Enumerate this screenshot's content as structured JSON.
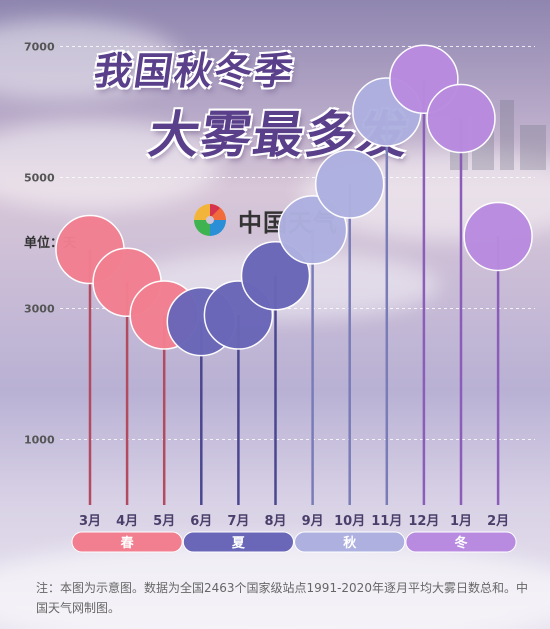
{
  "title": {
    "line1": "我国秋冬季",
    "line2": "大雾最多发"
  },
  "brand": {
    "name": "中国天气"
  },
  "unit_label": "单位：天",
  "chart_data": {
    "type": "bar",
    "categories": [
      "3月",
      "4月",
      "5月",
      "6月",
      "7月",
      "8月",
      "9月",
      "10月",
      "11月",
      "12月",
      "1月",
      "2月"
    ],
    "values": [
      3900,
      3400,
      2900,
      2800,
      2900,
      3500,
      4200,
      4900,
      6000,
      6500,
      5900,
      4100
    ],
    "yticks": [
      1000,
      3000,
      5000,
      7000
    ],
    "ylim": [
      0,
      7500
    ],
    "season_of_month": [
      0,
      0,
      0,
      1,
      1,
      1,
      2,
      2,
      2,
      3,
      3,
      3
    ],
    "seasons": [
      {
        "name": "春",
        "color": "#f27f90"
      },
      {
        "name": "夏",
        "color": "#6a66b8"
      },
      {
        "name": "秋",
        "color": "#aeb0e0"
      },
      {
        "name": "冬",
        "color": "#b98be0"
      }
    ]
  },
  "note": "注：本图为示意图。数据为全国2463个国家级站点1991-2020年逐月平均大雾日数总和。中国天气网制图。"
}
